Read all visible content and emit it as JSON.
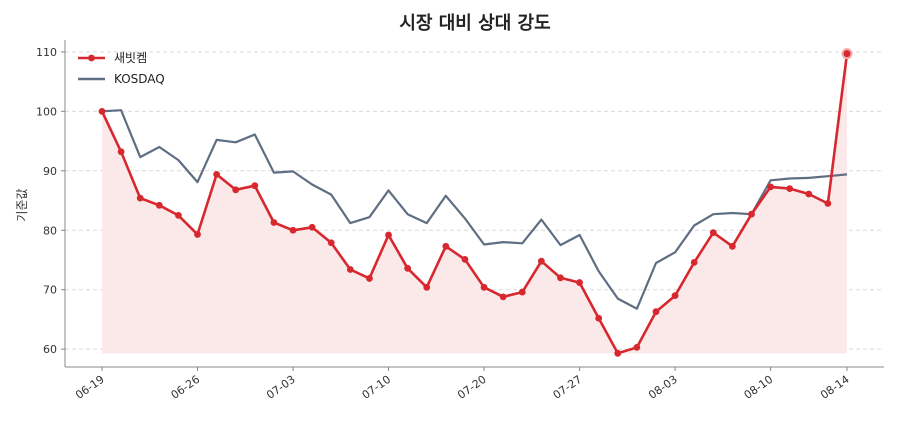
{
  "chart_data": {
    "type": "line",
    "title": "시장 대비 상대 강도",
    "xlabel": "",
    "ylabel": "기준값",
    "ylim": [
      57,
      112
    ],
    "yticks": [
      60,
      70,
      80,
      90,
      100,
      110
    ],
    "grid": "y-dashed",
    "legend_position": "top-left",
    "x_tick_labels": [
      "06-19",
      "06-26",
      "07-03",
      "07-10",
      "07-20",
      "07-27",
      "08-03",
      "08-10",
      "08-14"
    ],
    "x_tick_index": [
      0,
      5,
      10,
      15,
      20,
      25,
      30,
      35,
      39
    ],
    "series": [
      {
        "name": "새빗켐",
        "color": "#d7282f",
        "marker": "circle",
        "fill": "#fbe9e9",
        "values": [
          100,
          93.2,
          85.4,
          84.2,
          82.5,
          79.3,
          89.4,
          86.8,
          87.5,
          81.3,
          80.0,
          80.5,
          77.9,
          73.4,
          71.9,
          79.2,
          73.6,
          70.4,
          77.3,
          75.1,
          70.4,
          68.8,
          69.6,
          74.8,
          72.0,
          71.2,
          65.2,
          59.3,
          60.3,
          66.3,
          69.0,
          74.6,
          79.6,
          77.3,
          82.7,
          87.3,
          87.0,
          86.1,
          84.5,
          109.7
        ]
      },
      {
        "name": "KOSDAQ",
        "color": "#5f6e82",
        "marker": "none",
        "values": [
          100,
          100.2,
          92.3,
          94.0,
          91.8,
          88.1,
          95.2,
          94.8,
          96.1,
          89.7,
          89.9,
          87.7,
          86.0,
          81.2,
          82.2,
          86.7,
          82.7,
          81.2,
          85.8,
          82.0,
          77.6,
          78.0,
          77.8,
          81.8,
          77.5,
          79.2,
          73.1,
          68.5,
          66.8,
          74.5,
          76.3,
          80.8,
          82.7,
          82.9,
          82.7,
          88.4,
          88.7,
          88.8,
          89.1,
          89.4
        ]
      }
    ]
  }
}
